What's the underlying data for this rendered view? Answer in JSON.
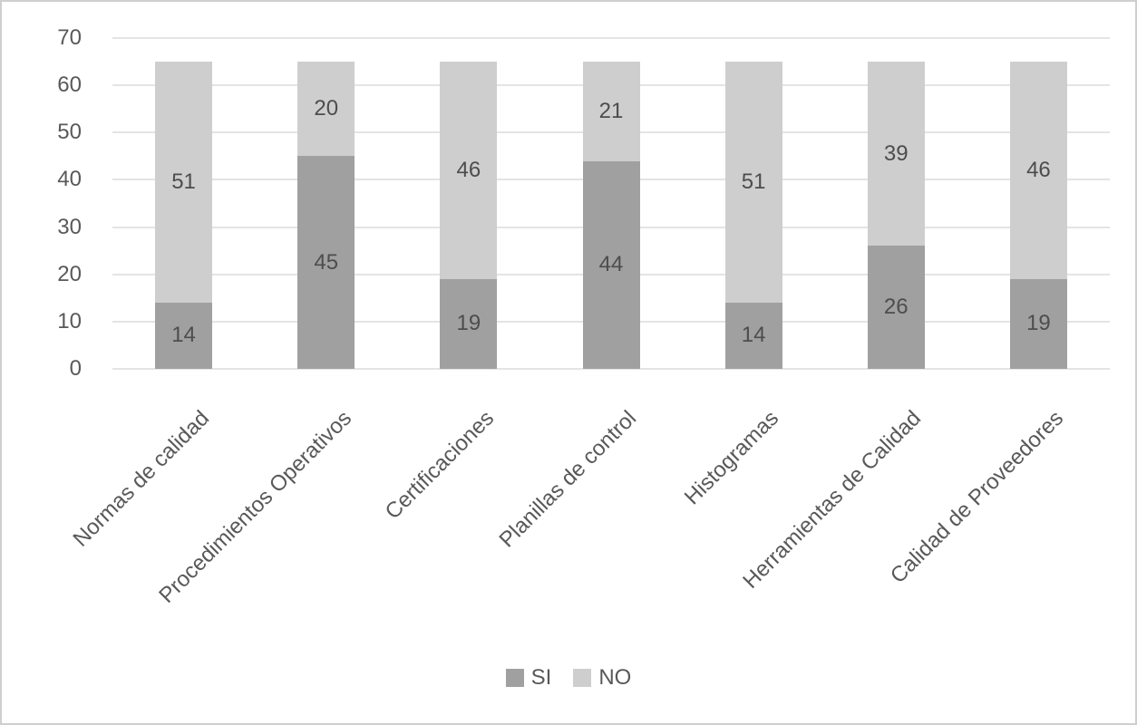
{
  "chart_data": {
    "type": "bar",
    "stacked": true,
    "orientation": "vertical-columns",
    "title": "",
    "xlabel": "",
    "ylabel": "",
    "categories": [
      "Normas de calidad",
      "Procedimientos Operativos",
      "Certificaciones",
      "Planillas de control",
      "Histogramas",
      "Herramientas de Calidad",
      "Calidad de Proveedores"
    ],
    "series": [
      {
        "name": "SI",
        "color": "#a0a0a0",
        "values": [
          14,
          45,
          19,
          44,
          14,
          26,
          19
        ]
      },
      {
        "name": "NO",
        "color": "#cecece",
        "values": [
          51,
          20,
          46,
          21,
          51,
          39,
          46
        ]
      }
    ],
    "stack_total": 65,
    "yticks": [
      0,
      10,
      20,
      30,
      40,
      50,
      60,
      70
    ],
    "ylim": [
      0,
      70
    ],
    "grid": "horizontal",
    "data_labels": true,
    "legend_position": "bottom"
  },
  "colors": {
    "si_fill": "#a0a0a0",
    "no_fill": "#cecece",
    "gridline": "#e4e4e4",
    "axis_text": "#595959",
    "data_label_text": "#4d4d4d",
    "frame_border": "#cfcfcf",
    "background": "#ffffff"
  }
}
